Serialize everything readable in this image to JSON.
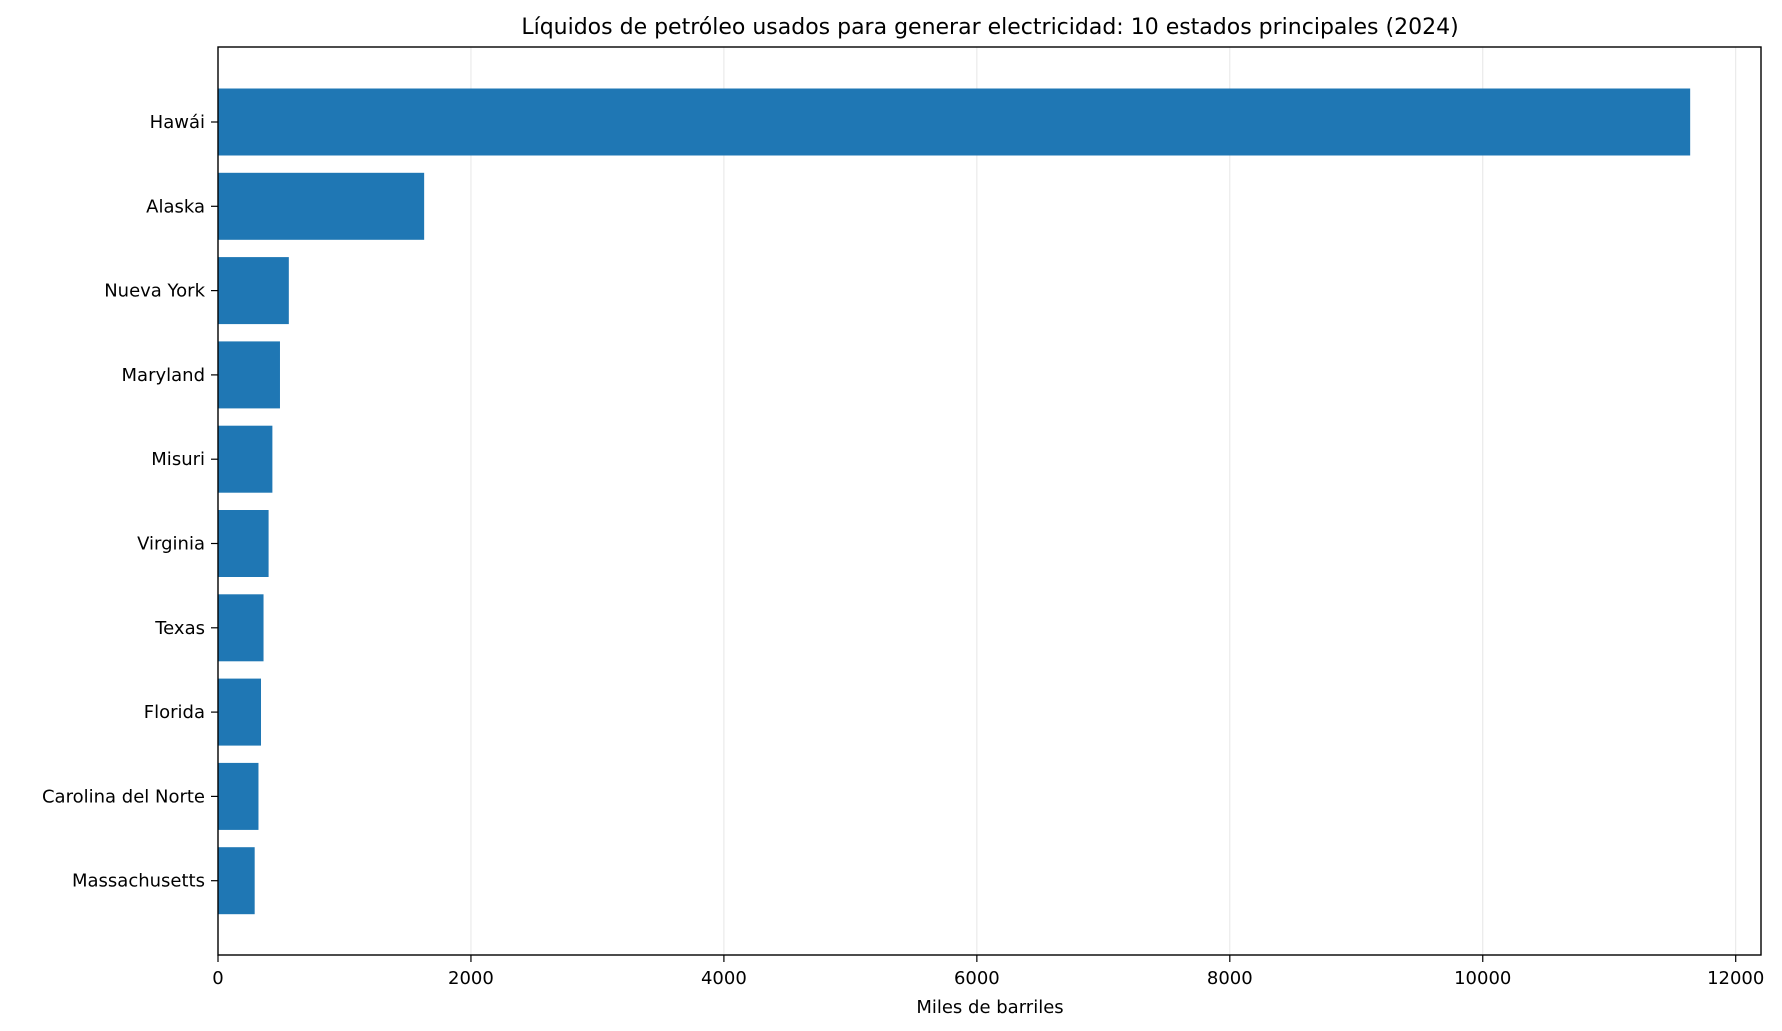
{
  "chart_data": {
    "type": "bar",
    "orientation": "horizontal",
    "title": "Líquidos de petróleo usados para generar electricidad: 10 estados principales (2024)",
    "xlabel": "Miles de barriles",
    "ylabel": "",
    "xlim": [
      0,
      12200
    ],
    "xticks": [
      0,
      2000,
      4000,
      6000,
      8000,
      10000,
      12000
    ],
    "xtick_labels": [
      "0",
      "2000",
      "4000",
      "6000",
      "8000",
      "10000",
      "12000"
    ],
    "grid": "vertical",
    "bar_color": "#1f77b4",
    "categories": [
      "Hawái",
      "Alaska",
      "Nueva York",
      "Maryland",
      "Misuri",
      "Virginia",
      "Texas",
      "Florida",
      "Carolina del Norte",
      "Massachusetts"
    ],
    "values": [
      11640,
      1630,
      560,
      490,
      430,
      400,
      360,
      340,
      320,
      290
    ]
  }
}
